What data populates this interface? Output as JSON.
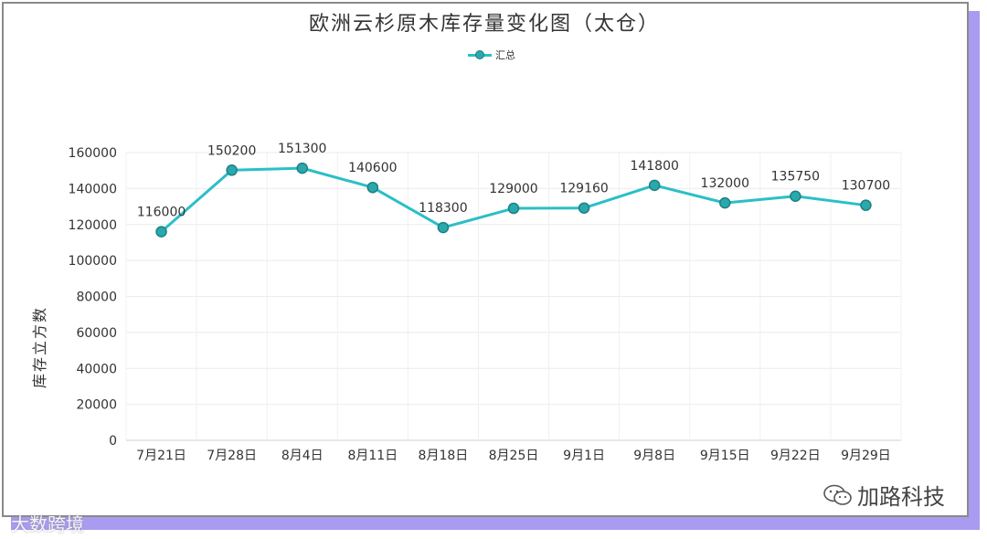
{
  "chart_data": {
    "type": "line",
    "title": "欧洲云杉原木库存量变化图（太仓）",
    "ylabel": "库存立方数",
    "xlabel": "",
    "ylim": [
      0,
      160000
    ],
    "yticks": [
      0,
      20000,
      40000,
      60000,
      80000,
      100000,
      120000,
      140000,
      160000
    ],
    "categories": [
      "7月21日",
      "7月28日",
      "8月4日",
      "8月11日",
      "8月18日",
      "8月25日",
      "9月1日",
      "9月8日",
      "9月15日",
      "9月22日",
      "9月29日"
    ],
    "series": [
      {
        "name": "汇总",
        "values": [
          116000,
          150200,
          151300,
          140600,
          118300,
          129000,
          129160,
          141800,
          132000,
          135750,
          130700
        ],
        "color": "#2bbfc6"
      }
    ],
    "data_labels": true,
    "grid": true,
    "legend": "top-center"
  },
  "watermarks": {
    "left": "大数跨境",
    "right": "加路科技"
  },
  "colors": {
    "line": "#2bbfc6",
    "marker": "#2aa9ad",
    "frame_shadow": "#a99bf0"
  }
}
